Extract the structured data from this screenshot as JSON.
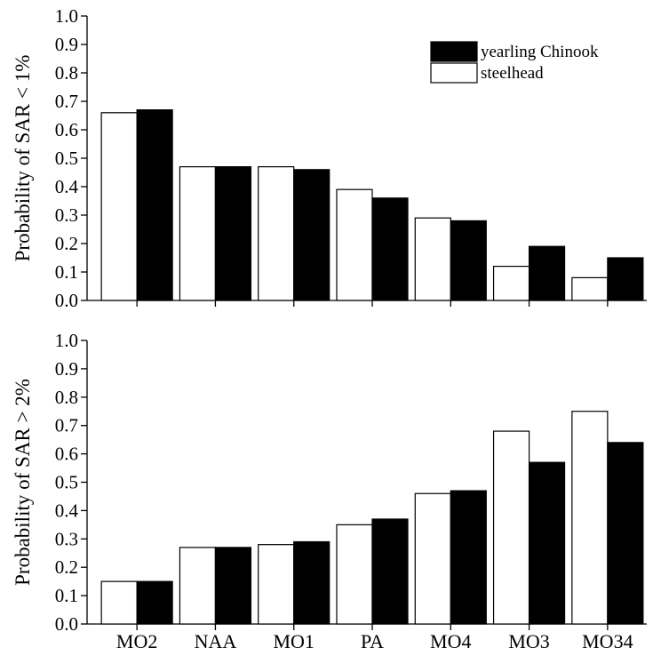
{
  "chart_data": [
    {
      "type": "bar",
      "categories": [
        "MO2",
        "NAA",
        "MO1",
        "PA",
        "MO4",
        "MO3",
        "MO34"
      ],
      "series": [
        {
          "name": "steelhead",
          "color": "#ffffff",
          "values": [
            0.66,
            0.47,
            0.47,
            0.39,
            0.29,
            0.12,
            0.08
          ]
        },
        {
          "name": "yearling Chinook",
          "color": "#000000",
          "values": [
            0.67,
            0.47,
            0.46,
            0.36,
            0.28,
            0.19,
            0.15
          ]
        }
      ],
      "ylabel": "Probability of SAR < 1%",
      "ylim": [
        0,
        1
      ],
      "yticks": [
        "0.0",
        "0.1",
        "0.2",
        "0.3",
        "0.4",
        "0.5",
        "0.6",
        "0.7",
        "0.8",
        "0.9",
        "1.0"
      ],
      "legend": "top-right",
      "show_category_labels": false
    },
    {
      "type": "bar",
      "categories": [
        "MO2",
        "NAA",
        "MO1",
        "PA",
        "MO4",
        "MO3",
        "MO34"
      ],
      "series": [
        {
          "name": "steelhead",
          "color": "#ffffff",
          "values": [
            0.15,
            0.27,
            0.28,
            0.35,
            0.46,
            0.68,
            0.75
          ]
        },
        {
          "name": "yearling Chinook",
          "color": "#000000",
          "values": [
            0.15,
            0.27,
            0.29,
            0.37,
            0.47,
            0.57,
            0.64
          ]
        }
      ],
      "ylabel": "Probability of SAR > 2%",
      "ylim": [
        0,
        1
      ],
      "yticks": [
        "0.0",
        "0.1",
        "0.2",
        "0.3",
        "0.4",
        "0.5",
        "0.6",
        "0.7",
        "0.8",
        "0.9",
        "1.0"
      ],
      "show_category_labels": true
    }
  ]
}
